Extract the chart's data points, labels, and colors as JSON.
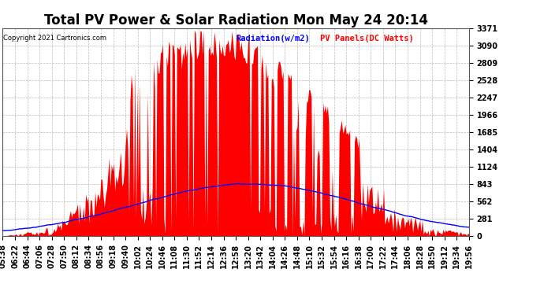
{
  "title": "Total PV Power & Solar Radiation Mon May 24 20:14",
  "copyright": "Copyright 2021 Cartronics.com",
  "legend_radiation": "Radiation(w/m2)",
  "legend_pv": "PV Panels(DC Watts)",
  "ylabel_right_ticks": [
    0.0,
    280.9,
    561.8,
    842.7,
    1123.6,
    1404.4,
    1685.3,
    1966.2,
    2247.1,
    2528.0,
    2808.9,
    3089.8,
    3370.7
  ],
  "ymax": 3370.7,
  "ymin": 0.0,
  "background_color": "#ffffff",
  "grid_color": "#bbbbbb",
  "pv_color": "#ff0000",
  "radiation_color": "#0000ff",
  "title_fontsize": 12,
  "tick_fontsize": 7,
  "xlabel_rotation": 90,
  "time_labels": [
    "05:38",
    "06:22",
    "06:44",
    "07:06",
    "07:28",
    "07:50",
    "08:12",
    "08:34",
    "08:56",
    "09:18",
    "09:40",
    "10:02",
    "10:24",
    "10:46",
    "11:08",
    "11:30",
    "11:52",
    "12:14",
    "12:36",
    "12:58",
    "13:20",
    "13:42",
    "14:04",
    "14:26",
    "14:48",
    "15:10",
    "15:32",
    "15:54",
    "16:16",
    "16:38",
    "17:00",
    "17:22",
    "17:44",
    "18:06",
    "18:28",
    "18:50",
    "19:12",
    "19:34",
    "19:56"
  ]
}
